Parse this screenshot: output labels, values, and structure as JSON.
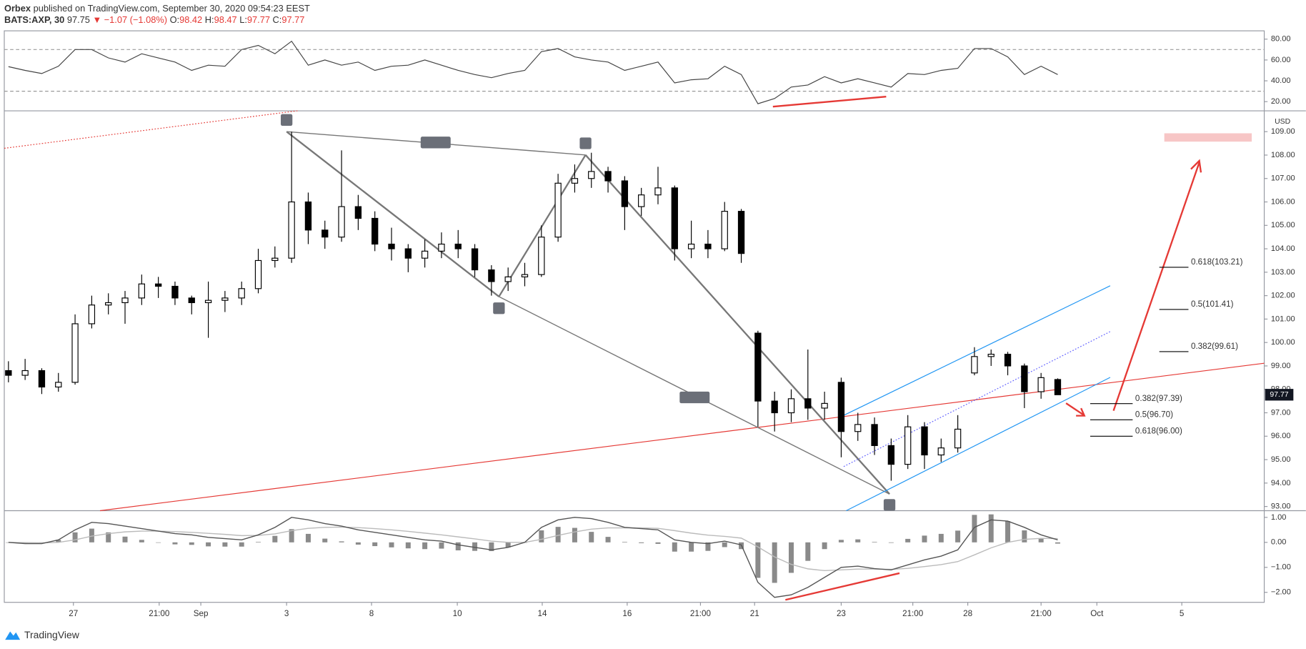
{
  "header": {
    "author": "Orbex",
    "published": "published on TradingView.com, September 30, 2020 09:54:23 EEST",
    "symbol": "BATS:AXP, 30",
    "price": "97.75",
    "change": "▼ −1.07 (−1.08%)",
    "open_label": "O:",
    "open": "98.42",
    "high_label": "H:",
    "high": "98.47",
    "low_label": "L:",
    "low": "97.77",
    "close_label": "C:",
    "close": "97.77"
  },
  "footer": {
    "brand": "TradingView"
  },
  "chart_data": [
    {
      "type": "candlestick",
      "currency": "USD",
      "last_price_label": "97.77",
      "up_color": "#ffffff",
      "down_color": "#000000",
      "xlim": [
        -0.25,
        75.4
      ],
      "xticks": [
        {
          "value": 3.9,
          "label": "27"
        },
        {
          "value": 9.05,
          "label": "21:00"
        },
        {
          "value": 11.55,
          "label": "Sep"
        },
        {
          "value": 16.7,
          "label": "3"
        },
        {
          "value": 21.8,
          "label": "8"
        },
        {
          "value": 26.95,
          "label": "10"
        },
        {
          "value": 32.05,
          "label": "14"
        },
        {
          "value": 37.15,
          "label": "16"
        },
        {
          "value": 41.55,
          "label": "21:00"
        },
        {
          "value": 44.8,
          "label": "21"
        },
        {
          "value": 50,
          "label": "23"
        },
        {
          "value": 54.3,
          "label": "21:00"
        },
        {
          "value": 57.6,
          "label": "28"
        },
        {
          "value": 62,
          "label": "21:00"
        },
        {
          "value": 65.35,
          "label": "Oct"
        },
        {
          "value": 70.45,
          "label": "5"
        }
      ],
      "ylim": [
        92.82,
        109.89
      ],
      "yticks": [
        {
          "value": 93,
          "label": "93.00"
        },
        {
          "value": 94,
          "label": "94.00"
        },
        {
          "value": 95,
          "label": "95.00"
        },
        {
          "value": 96,
          "label": "96.00"
        },
        {
          "value": 97,
          "label": "97.00"
        },
        {
          "value": 98,
          "label": "98.00"
        },
        {
          "value": 99,
          "label": "99.00"
        },
        {
          "value": 100,
          "label": "100.00"
        },
        {
          "value": 101,
          "label": "101.00"
        },
        {
          "value": 102,
          "label": "102.00"
        },
        {
          "value": 103,
          "label": "103.00"
        },
        {
          "value": 104,
          "label": "104.00"
        },
        {
          "value": 105,
          "label": "105.00"
        },
        {
          "value": 106,
          "label": "106.00"
        },
        {
          "value": 107,
          "label": "107.00"
        },
        {
          "value": 108,
          "label": "108.00"
        },
        {
          "value": 109,
          "label": "109.00"
        }
      ],
      "fib_levels": [
        {
          "label": "0.618(103.21)",
          "value": 103.21
        },
        {
          "label": "0.5(101.41)",
          "value": 101.41
        },
        {
          "label": "0.382(99.61)",
          "value": 99.61
        },
        {
          "label": "0.382(97.39)",
          "value": 97.39
        },
        {
          "label": "0.5(96.70)",
          "value": 96.7
        },
        {
          "label": "0.618(96.00)",
          "value": 96.0
        }
      ],
      "ohlc": [
        [
          98.8,
          99.2,
          98.3,
          98.6
        ],
        [
          98.6,
          99.3,
          98.4,
          98.8
        ],
        [
          98.8,
          98.9,
          97.8,
          98.1
        ],
        [
          98.1,
          98.7,
          97.9,
          98.3
        ],
        [
          98.3,
          101.2,
          98.2,
          100.8
        ],
        [
          100.8,
          102.0,
          100.6,
          101.6
        ],
        [
          101.6,
          102.1,
          101.2,
          101.7
        ],
        [
          101.7,
          102.2,
          100.8,
          101.9
        ],
        [
          101.9,
          102.9,
          101.6,
          102.5
        ],
        [
          102.5,
          102.8,
          101.9,
          102.4
        ],
        [
          102.4,
          102.6,
          101.6,
          101.9
        ],
        [
          101.9,
          102.0,
          101.2,
          101.7
        ],
        [
          101.7,
          102.6,
          100.2,
          101.8
        ],
        [
          101.8,
          102.2,
          101.3,
          101.9
        ],
        [
          101.9,
          102.6,
          101.6,
          102.3
        ],
        [
          102.3,
          104.0,
          102.1,
          103.5
        ],
        [
          103.5,
          104.1,
          103.2,
          103.6
        ],
        [
          103.6,
          109.0,
          103.4,
          106.0
        ],
        [
          106.0,
          106.4,
          104.2,
          104.8
        ],
        [
          104.8,
          105.2,
          104.0,
          104.5
        ],
        [
          104.5,
          108.2,
          104.3,
          105.8
        ],
        [
          105.8,
          106.3,
          104.8,
          105.3
        ],
        [
          105.3,
          105.6,
          103.9,
          104.2
        ],
        [
          104.2,
          104.9,
          103.5,
          104.0
        ],
        [
          104.0,
          104.2,
          103.0,
          103.6
        ],
        [
          103.6,
          104.4,
          103.2,
          103.9
        ],
        [
          103.9,
          104.7,
          103.6,
          104.2
        ],
        [
          104.2,
          104.8,
          103.6,
          104.0
        ],
        [
          104.0,
          104.2,
          102.8,
          103.1
        ],
        [
          103.1,
          103.3,
          102.0,
          102.6
        ],
        [
          102.6,
          103.2,
          102.2,
          102.8
        ],
        [
          102.8,
          103.4,
          102.4,
          102.9
        ],
        [
          102.9,
          105.0,
          102.8,
          104.5
        ],
        [
          104.5,
          107.2,
          104.3,
          106.8
        ],
        [
          106.8,
          107.6,
          106.4,
          107.0
        ],
        [
          107.0,
          108.1,
          106.6,
          107.3
        ],
        [
          107.3,
          107.5,
          106.4,
          106.9
        ],
        [
          106.9,
          107.1,
          104.8,
          105.8
        ],
        [
          105.8,
          106.6,
          105.4,
          106.3
        ],
        [
          106.3,
          107.5,
          105.9,
          106.6
        ],
        [
          106.6,
          106.7,
          103.5,
          104.0
        ],
        [
          104.0,
          105.2,
          103.6,
          104.2
        ],
        [
          104.2,
          104.8,
          103.6,
          104.0
        ],
        [
          104.0,
          106.0,
          103.9,
          105.6
        ],
        [
          105.6,
          105.7,
          103.4,
          103.8
        ],
        [
          100.4,
          100.5,
          96.4,
          97.5
        ],
        [
          97.5,
          97.9,
          96.2,
          97.0
        ],
        [
          97.0,
          98.0,
          96.6,
          97.6
        ],
        [
          97.6,
          99.7,
          96.7,
          97.2
        ],
        [
          97.2,
          97.9,
          96.7,
          97.4
        ],
        [
          98.3,
          98.5,
          95.1,
          96.2
        ],
        [
          96.2,
          97.0,
          95.8,
          96.5
        ],
        [
          96.5,
          96.8,
          95.2,
          95.6
        ],
        [
          95.6,
          95.9,
          94.1,
          94.8
        ],
        [
          94.8,
          96.9,
          94.6,
          96.4
        ],
        [
          96.4,
          96.6,
          94.6,
          95.2
        ],
        [
          95.2,
          95.9,
          94.9,
          95.5
        ],
        [
          95.5,
          96.9,
          95.3,
          96.3
        ],
        [
          98.7,
          99.8,
          98.6,
          99.4
        ],
        [
          99.4,
          99.7,
          99.0,
          99.5
        ],
        [
          99.5,
          99.6,
          98.6,
          99.0
        ],
        [
          99.0,
          99.1,
          97.2,
          97.9
        ],
        [
          97.9,
          98.7,
          97.6,
          98.5
        ],
        [
          98.42,
          98.47,
          97.77,
          97.77
        ]
      ]
    },
    {
      "type": "line",
      "color": "#444444",
      "ylim": [
        11.2,
        88
      ],
      "bands": [
        30,
        70
      ],
      "yticks": [
        {
          "value": 20,
          "label": "20.00"
        },
        {
          "value": 40,
          "label": "40.00"
        },
        {
          "value": 60,
          "label": "60.00"
        },
        {
          "value": 80,
          "label": "80.00"
        }
      ],
      "values": [
        53.6,
        50,
        47,
        54,
        70,
        70,
        62,
        58,
        66,
        62,
        58,
        50,
        55,
        54,
        70,
        74,
        66,
        78,
        55,
        60,
        55,
        58,
        50,
        54,
        55,
        60,
        55,
        50,
        46,
        43,
        47,
        50,
        68,
        71,
        63,
        60,
        58,
        50,
        54,
        58,
        38,
        41,
        42,
        54,
        46,
        18,
        23,
        34,
        36,
        44,
        38,
        42,
        38,
        34,
        47,
        46,
        50,
        52,
        71,
        71,
        63,
        46,
        54,
        46
      ]
    },
    {
      "type": "macd",
      "macd_color": "#555555",
      "signal_color": "#bbbbbb",
      "hist_color": "#8a8a8a",
      "ylim": [
        -2.4,
        1.267
      ],
      "yticks": [
        {
          "value": -2,
          "label": "−2.00"
        },
        {
          "value": -1,
          "label": "−1.00"
        },
        {
          "value": 0,
          "label": "0.00"
        },
        {
          "value": 1,
          "label": "1.00"
        }
      ],
      "macd": [
        0.0,
        -0.05,
        -0.05,
        0.1,
        0.5,
        0.8,
        0.75,
        0.65,
        0.55,
        0.45,
        0.35,
        0.3,
        0.2,
        0.15,
        0.1,
        0.3,
        0.6,
        1.0,
        0.9,
        0.75,
        0.65,
        0.5,
        0.4,
        0.3,
        0.2,
        0.1,
        0.05,
        -0.1,
        -0.2,
        -0.3,
        -0.2,
        0.0,
        0.6,
        0.9,
        1.0,
        0.95,
        0.8,
        0.6,
        0.55,
        0.5,
        0.1,
        0.0,
        -0.05,
        0.05,
        -0.1,
        -1.6,
        -2.2,
        -2.1,
        -1.8,
        -1.4,
        -1.0,
        -0.95,
        -1.05,
        -1.1,
        -0.9,
        -0.7,
        -0.55,
        -0.3,
        0.6,
        0.9,
        0.85,
        0.6,
        0.3,
        0.1
      ],
      "signal": [
        0.0,
        -0.01,
        -0.02,
        0.0,
        0.1,
        0.25,
        0.35,
        0.42,
        0.45,
        0.45,
        0.43,
        0.4,
        0.36,
        0.32,
        0.27,
        0.28,
        0.34,
        0.47,
        0.56,
        0.6,
        0.61,
        0.59,
        0.55,
        0.5,
        0.44,
        0.37,
        0.3,
        0.22,
        0.14,
        0.05,
        0.0,
        0.0,
        0.12,
        0.28,
        0.42,
        0.53,
        0.58,
        0.58,
        0.58,
        0.56,
        0.47,
        0.37,
        0.29,
        0.24,
        0.17,
        -0.18,
        -0.58,
        -0.88,
        -1.06,
        -1.13,
        -1.1,
        -1.07,
        -1.07,
        -1.08,
        -1.04,
        -0.97,
        -0.89,
        -0.77,
        -0.5,
        -0.22,
        0.0,
        0.12,
        0.16,
        0.15
      ],
      "histogram": [
        0.0,
        -0.04,
        -0.03,
        0.1,
        0.4,
        0.55,
        0.4,
        0.23,
        0.1,
        0.0,
        -0.08,
        -0.1,
        -0.16,
        -0.17,
        -0.17,
        0.02,
        0.26,
        0.53,
        0.34,
        0.15,
        0.04,
        -0.09,
        -0.15,
        -0.2,
        -0.24,
        -0.27,
        -0.25,
        -0.32,
        -0.34,
        -0.35,
        -0.2,
        0.0,
        0.48,
        0.62,
        0.58,
        0.42,
        0.22,
        0.02,
        -0.03,
        -0.06,
        -0.37,
        -0.37,
        -0.34,
        -0.19,
        -0.27,
        -1.42,
        -1.62,
        -1.22,
        -0.74,
        -0.27,
        0.1,
        0.12,
        0.02,
        -0.02,
        0.14,
        0.27,
        0.34,
        0.47,
        1.1,
        1.12,
        0.85,
        0.48,
        0.14,
        -0.05
      ]
    }
  ]
}
